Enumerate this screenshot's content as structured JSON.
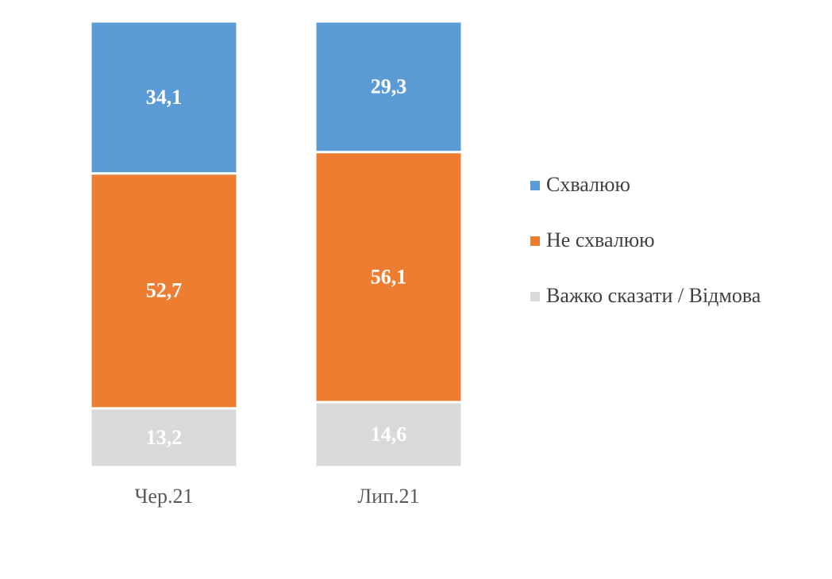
{
  "chart_data": {
    "type": "stacked_bar",
    "categories": [
      "Чер.21",
      "Лип.21"
    ],
    "series": [
      {
        "name": "Схвалюю",
        "color": "#5b9bd5",
        "values": [
          34.1,
          29.3
        ],
        "value_labels": [
          "34,1",
          "29,3"
        ]
      },
      {
        "name": "Не схвалюю",
        "color": "#ed7d31",
        "values": [
          52.7,
          56.1
        ],
        "value_labels": [
          "52,7",
          "56,1"
        ]
      },
      {
        "name": "Важко сказати / Відмова",
        "color": "#d9d9d9",
        "values": [
          13.2,
          14.6
        ],
        "value_labels": [
          "13,2",
          "14,6"
        ]
      }
    ],
    "ylim": [
      0,
      100
    ],
    "legend": "right"
  }
}
